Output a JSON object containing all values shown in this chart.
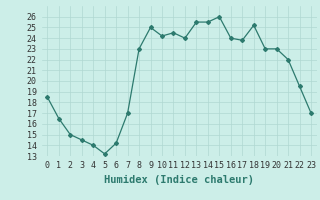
{
  "x": [
    0,
    1,
    2,
    3,
    4,
    5,
    6,
    7,
    8,
    9,
    10,
    11,
    12,
    13,
    14,
    15,
    16,
    17,
    18,
    19,
    20,
    21,
    22,
    23
  ],
  "y": [
    18.5,
    16.5,
    15.0,
    14.5,
    14.0,
    13.2,
    14.2,
    17.0,
    23.0,
    25.0,
    24.2,
    24.5,
    24.0,
    25.5,
    25.5,
    26.0,
    24.0,
    23.8,
    25.2,
    23.0,
    23.0,
    22.0,
    19.5,
    17.0
  ],
  "line_color": "#2d7a6e",
  "marker": "D",
  "marker_size": 2,
  "bg_color": "#cceee8",
  "grid_color": "#b0d8d2",
  "xlabel": "Humidex (Indice chaleur)",
  "ylim": [
    13,
    27
  ],
  "xlim": [
    -0.5,
    23.5
  ],
  "yticks": [
    13,
    14,
    15,
    16,
    17,
    18,
    19,
    20,
    21,
    22,
    23,
    24,
    25,
    26
  ],
  "xticks": [
    0,
    1,
    2,
    3,
    4,
    5,
    6,
    7,
    8,
    9,
    10,
    11,
    12,
    13,
    14,
    15,
    16,
    17,
    18,
    19,
    20,
    21,
    22,
    23
  ],
  "tick_fontsize": 6,
  "xlabel_fontsize": 7.5
}
